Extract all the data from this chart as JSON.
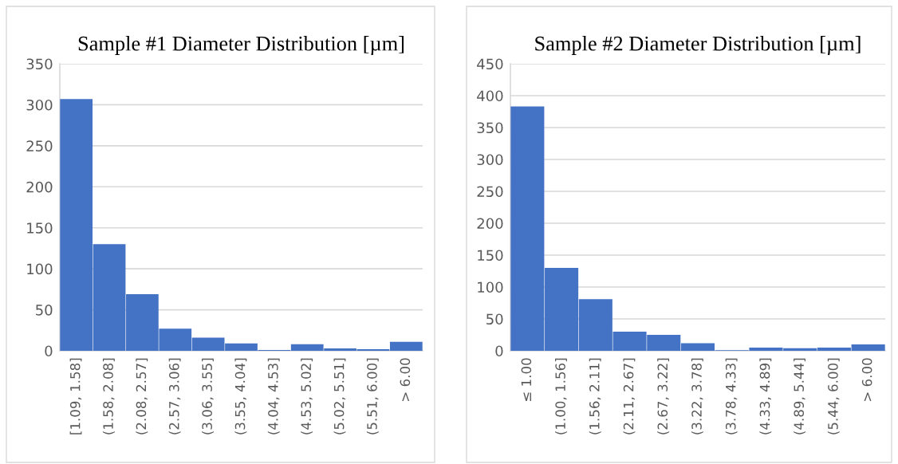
{
  "chart_data": [
    {
      "type": "bar",
      "title": "Sample #1 Diameter Distribution [µm]",
      "categories": [
        "[1.09, 1.58]",
        "(1.58, 2.08]",
        "(2.08, 2.57]",
        "(2.57, 3.06]",
        "(3.06, 3.55]",
        "(3.55, 4.04]",
        "(4.04, 4.53]",
        "(4.53, 5.02]",
        "(5.02, 5.51]",
        "(5.51, 6.00]",
        "> 6.00"
      ],
      "values": [
        307,
        130,
        69,
        27,
        16,
        9,
        1,
        8,
        3,
        2,
        11
      ],
      "color": "#4472c4",
      "ylim": [
        0,
        350
      ],
      "yticks": [
        0,
        50,
        100,
        150,
        200,
        250,
        300,
        350
      ],
      "grid": "y"
    },
    {
      "type": "bar",
      "title": "Sample #2 Diameter Distribution [µm]",
      "categories": [
        "≤ 1.00",
        "(1.00, 1.56]",
        "(1.56, 2.11]",
        "(2.11, 2.67]",
        "(2.67, 3.22]",
        "(3.22, 3.78]",
        "(3.78, 4.33]",
        "(4.33, 4.89]",
        "(4.89, 5.44]",
        "(5.44, 6.00]",
        "> 6.00"
      ],
      "values": [
        383,
        130,
        81,
        30,
        25,
        12,
        1,
        5,
        4,
        5,
        10
      ],
      "color": "#4472c4",
      "ylim": [
        0,
        450
      ],
      "yticks": [
        0,
        50,
        100,
        150,
        200,
        250,
        300,
        350,
        400,
        450
      ],
      "grid": "y"
    }
  ]
}
